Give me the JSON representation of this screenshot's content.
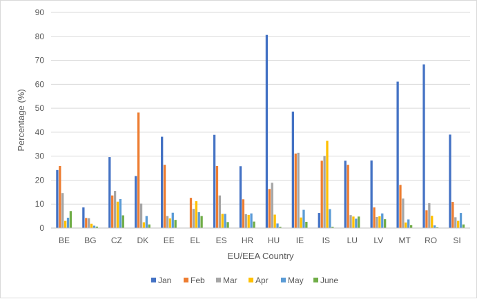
{
  "chart_data": {
    "type": "bar",
    "title": "",
    "xlabel": "EU/EEA Country",
    "ylabel": "Percentage (%)",
    "ylim": [
      0,
      90
    ],
    "yticks": [
      "0",
      "10",
      "20",
      "30",
      "40",
      "50",
      "60",
      "70",
      "80",
      "90"
    ],
    "grid": true,
    "legend_position": "bottom",
    "categories": [
      "BE",
      "BG",
      "CZ",
      "DK",
      "EE",
      "EL",
      "ES",
      "HR",
      "HU",
      "IE",
      "IS",
      "LU",
      "LV",
      "MT",
      "RO",
      "SI"
    ],
    "series": [
      {
        "name": "Jan",
        "color": "#4472c4",
        "values": [
          24.2,
          8.6,
          29.6,
          21.7,
          38.1,
          0,
          38.9,
          25.8,
          80.6,
          48.6,
          6.3,
          28.1,
          28.2,
          61.1,
          68.3,
          39.0
        ]
      },
      {
        "name": "Feb",
        "color": "#ed7d31",
        "values": [
          25.9,
          4.2,
          13.6,
          48.2,
          26.4,
          12.6,
          25.9,
          12.0,
          16.3,
          31.1,
          28.1,
          26.4,
          8.6,
          18.0,
          7.4,
          10.9
        ]
      },
      {
        "name": "Mar",
        "color": "#a5a5a5",
        "values": [
          14.6,
          4.1,
          15.5,
          10.2,
          5.0,
          8.0,
          13.6,
          5.8,
          18.9,
          31.4,
          30.1,
          5.4,
          4.6,
          12.3,
          10.4,
          4.5
        ]
      },
      {
        "name": "Apr",
        "color": "#ffc000",
        "values": [
          3.0,
          1.8,
          11.0,
          2.4,
          4.0,
          11.2,
          5.9,
          5.5,
          5.6,
          4.4,
          36.4,
          4.8,
          4.9,
          2.3,
          5.1,
          3.0
        ]
      },
      {
        "name": "May",
        "color": "#5b9bd5",
        "values": [
          4.3,
          1.0,
          12.1,
          5.0,
          6.4,
          6.6,
          5.9,
          6.1,
          1.9,
          7.6,
          7.9,
          3.9,
          6.1,
          3.6,
          1.1,
          6.3
        ]
      },
      {
        "name": "June",
        "color": "#70ad47",
        "values": [
          7.1,
          0.6,
          5.3,
          1.5,
          3.4,
          5.0,
          2.5,
          2.7,
          0.5,
          2.6,
          0.5,
          4.8,
          3.7,
          1.2,
          0.3,
          1.5
        ]
      }
    ]
  }
}
